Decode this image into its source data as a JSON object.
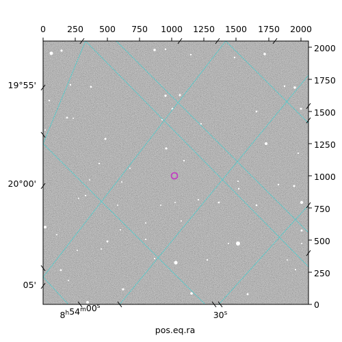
{
  "figure": {
    "xlabel": "pos.eq.ra",
    "pixel_axes": {
      "top_ticks": [
        "0",
        "250",
        "500",
        "750",
        "1000",
        "1250",
        "1500",
        "1750",
        "2000"
      ],
      "right_ticks": [
        "0",
        "250",
        "500",
        "750",
        "1000",
        "1250",
        "1500",
        "1750",
        "2000"
      ]
    },
    "ra_ticks": [
      "8h54m00s",
      "30s"
    ],
    "dec_ticks": [
      "19°55'",
      "20°00'",
      "05'"
    ],
    "colors": {
      "grid": "#2fd4d4",
      "marker": "#c040c0",
      "frame": "#000000"
    },
    "marker": {
      "shape": "circle",
      "x_pix": 1020,
      "y_pix": 1000
    }
  }
}
